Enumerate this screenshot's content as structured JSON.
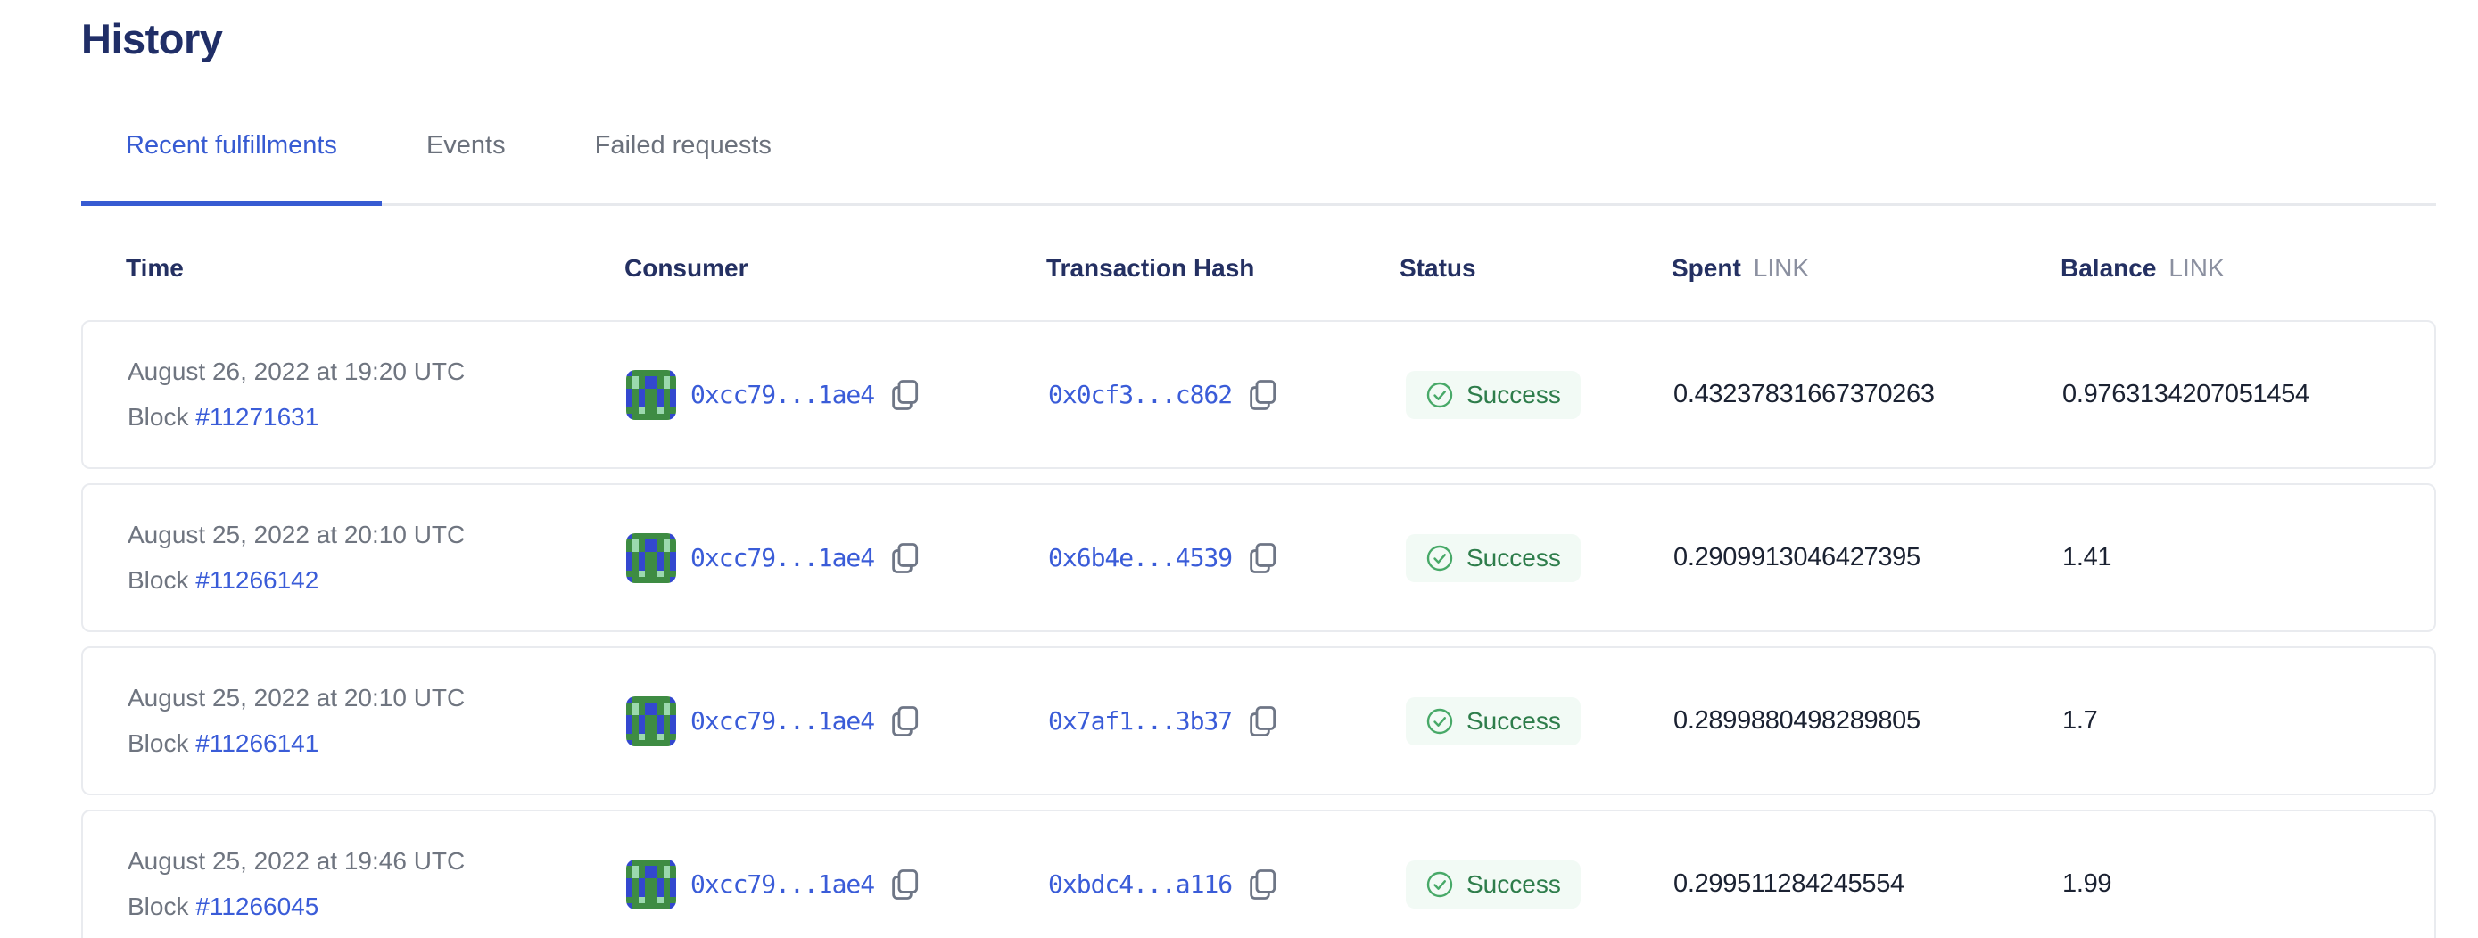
{
  "title": "History",
  "tabs": [
    {
      "label": "Recent fulfillments",
      "active": true
    },
    {
      "label": "Events",
      "active": false
    },
    {
      "label": "Failed requests",
      "active": false
    }
  ],
  "table": {
    "headers": {
      "time": "Time",
      "consumer": "Consumer",
      "tx_hash": "Transaction Hash",
      "status": "Status",
      "spent": "Spent",
      "spent_unit": "LINK",
      "balance": "Balance",
      "balance_unit": "LINK"
    },
    "rows": [
      {
        "time": "August 26, 2022 at 19:20 UTC",
        "block_label": "Block",
        "block_number": "#11271631",
        "consumer": "0xcc79...1ae4",
        "tx_hash": "0x0cf3...c862",
        "status": "Success",
        "spent": "0.43237831667370263",
        "balance": "0.9763134207051454"
      },
      {
        "time": "August 25, 2022 at 20:10 UTC",
        "block_label": "Block",
        "block_number": "#11266142",
        "consumer": "0xcc79...1ae4",
        "tx_hash": "0x6b4e...4539",
        "status": "Success",
        "spent": "0.2909913046427395",
        "balance": "1.41"
      },
      {
        "time": "August 25, 2022 at 20:10 UTC",
        "block_label": "Block",
        "block_number": "#11266141",
        "consumer": "0xcc79...1ae4",
        "tx_hash": "0x7af1...3b37",
        "status": "Success",
        "spent": "0.2899880498289805",
        "balance": "1.7"
      },
      {
        "time": "August 25, 2022 at 19:46 UTC",
        "block_label": "Block",
        "block_number": "#11266045",
        "consumer": "0xcc79...1ae4",
        "tx_hash": "0xbdc4...a116",
        "status": "Success",
        "spent": "0.299511284245554",
        "balance": "1.99"
      }
    ]
  },
  "avatar": {
    "name": "blockies-identicon",
    "palette": {
      "G": "#3e8c43",
      "B": "#3348cf",
      "M": "#9bd9ae"
    },
    "pixels": [
      "BGGGGGGB",
      "GMGBBGMG",
      "GMGBBGMG",
      "BGBGGBGB",
      "BGBGGBGB",
      "BGBGGBGB",
      "GGMGGMGG",
      "BGGGGGGB"
    ]
  },
  "colors": {
    "accent_blue": "#375bd2",
    "navy_heading": "#202e67",
    "link_blue": "#3a5cd8",
    "gray_text": "#6f7580",
    "success_text": "#2e7d4b",
    "success_icon": "#48a968",
    "success_bg": "#f2faf5",
    "card_border": "#e9ebef"
  }
}
